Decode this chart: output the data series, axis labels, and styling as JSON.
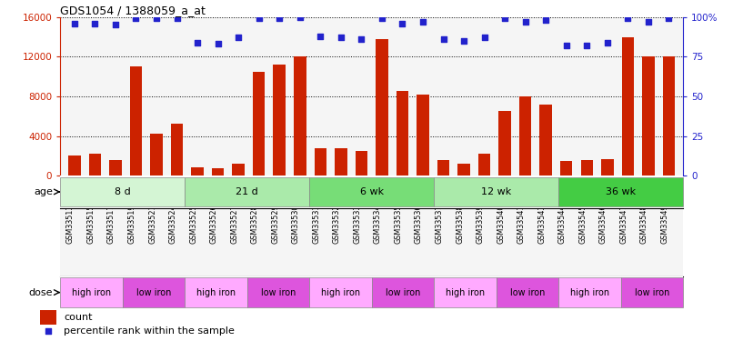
{
  "title": "GDS1054 / 1388059_a_at",
  "samples": [
    "GSM33513",
    "GSM33515",
    "GSM33517",
    "GSM33519",
    "GSM33521",
    "GSM33524",
    "GSM33525",
    "GSM33526",
    "GSM33527",
    "GSM33528",
    "GSM33529",
    "GSM33530",
    "GSM33531",
    "GSM33532",
    "GSM33533",
    "GSM33534",
    "GSM33535",
    "GSM33536",
    "GSM33537",
    "GSM33538",
    "GSM33539",
    "GSM33540",
    "GSM33541",
    "GSM33543",
    "GSM33544",
    "GSM33545",
    "GSM33546",
    "GSM33547",
    "GSM33548",
    "GSM33549"
  ],
  "counts": [
    2000,
    2200,
    1600,
    11000,
    4200,
    5200,
    800,
    750,
    1200,
    10500,
    11200,
    12000,
    2800,
    2800,
    2500,
    13800,
    8500,
    8200,
    1600,
    1200,
    2200,
    6500,
    8000,
    7200,
    1500,
    1600,
    1700,
    14000,
    12000,
    12000
  ],
  "percentile": [
    96,
    96,
    95,
    99,
    99,
    99,
    84,
    83,
    87,
    99,
    99,
    100,
    88,
    87,
    86,
    99,
    96,
    97,
    86,
    85,
    87,
    99,
    97,
    98,
    82,
    82,
    84,
    99,
    97,
    99
  ],
  "age_groups": [
    {
      "label": "8 d",
      "start": 0,
      "end": 6,
      "color": "#d4f5d4"
    },
    {
      "label": "21 d",
      "start": 6,
      "end": 12,
      "color": "#aaeaaa"
    },
    {
      "label": "6 wk",
      "start": 12,
      "end": 18,
      "color": "#77dd77"
    },
    {
      "label": "12 wk",
      "start": 18,
      "end": 24,
      "color": "#aaeaaa"
    },
    {
      "label": "36 wk",
      "start": 24,
      "end": 30,
      "color": "#44cc44"
    }
  ],
  "dose_groups": [
    {
      "label": "high iron",
      "start": 0,
      "end": 3,
      "color": "#ffaaff"
    },
    {
      "label": "low iron",
      "start": 3,
      "end": 6,
      "color": "#dd55dd"
    },
    {
      "label": "high iron",
      "start": 6,
      "end": 9,
      "color": "#ffaaff"
    },
    {
      "label": "low iron",
      "start": 9,
      "end": 12,
      "color": "#dd55dd"
    },
    {
      "label": "high iron",
      "start": 12,
      "end": 15,
      "color": "#ffaaff"
    },
    {
      "label": "low iron",
      "start": 15,
      "end": 18,
      "color": "#dd55dd"
    },
    {
      "label": "high iron",
      "start": 18,
      "end": 21,
      "color": "#ffaaff"
    },
    {
      "label": "low iron",
      "start": 21,
      "end": 24,
      "color": "#dd55dd"
    },
    {
      "label": "high iron",
      "start": 24,
      "end": 27,
      "color": "#ffaaff"
    },
    {
      "label": "low iron",
      "start": 27,
      "end": 30,
      "color": "#dd55dd"
    }
  ],
  "bar_color": "#cc2200",
  "dot_color": "#2222cc",
  "ylim_left": [
    0,
    16000
  ],
  "ylim_right": [
    0,
    100
  ],
  "yticks_left": [
    0,
    4000,
    8000,
    12000,
    16000
  ],
  "yticks_right": [
    0,
    25,
    50,
    75,
    100
  ],
  "bg_color": "#f5f5f5"
}
